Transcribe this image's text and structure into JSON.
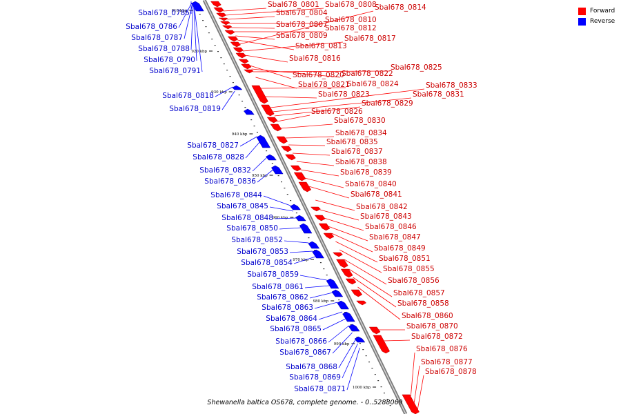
{
  "caption": "Shewanella baltica OS678, complete genome. - 0..5288069",
  "legend": [
    {
      "label": "Forward",
      "color": "#ff0000"
    },
    {
      "label": "Reverse",
      "color": "#0000ff"
    }
  ],
  "colors": {
    "forward": "#ff0000",
    "reverse": "#0000ff",
    "backbone": "#888888"
  },
  "ticks": [
    "910 kbp",
    "920 kbp",
    "930 kbp",
    "940 kbp",
    "950 kbp",
    "960 kbp",
    "970 kbp",
    "980 kbp",
    "990 kbp",
    "1000 kbp"
  ],
  "forward_genes": [
    "Sbal678_0801",
    "Sbal678_0804",
    "Sbal678_0807",
    "Sbal678_0809",
    "Sbal678_0808",
    "Sbal678_0810",
    "Sbal678_0812",
    "Sbal678_0814",
    "Sbal678_0813",
    "Sbal678_0817",
    "Sbal678_0816",
    "Sbal678_0820",
    "Sbal678_0822",
    "Sbal678_0825",
    "Sbal678_0821",
    "Sbal678_0824",
    "Sbal678_0823",
    "Sbal678_0833",
    "Sbal678_0831",
    "Sbal678_0829",
    "Sbal678_0826",
    "Sbal678_0830",
    "Sbal678_0834",
    "Sbal678_0835",
    "Sbal678_0837",
    "Sbal678_0838",
    "Sbal678_0839",
    "Sbal678_0840",
    "Sbal678_0841",
    "Sbal678_0842",
    "Sbal678_0843",
    "Sbal678_0846",
    "Sbal678_0847",
    "Sbal678_0849",
    "Sbal678_0851",
    "Sbal678_0855",
    "Sbal678_0856",
    "Sbal678_0857",
    "Sbal678_0858",
    "Sbal678_0860",
    "Sbal678_0870",
    "Sbal678_0872",
    "Sbal678_0876",
    "Sbal678_0877",
    "Sbal678_0878"
  ],
  "reverse_genes": [
    "Sbal678_0785",
    "Sbal678_0786",
    "Sbal678_0787",
    "Sbal678_0788",
    "Sbal678_0790",
    "Sbal678_0791",
    "Sbal678_0818",
    "Sbal678_0819",
    "Sbal678_0827",
    "Sbal678_0828",
    "Sbal678_0832",
    "Sbal678_0836",
    "Sbal678_0844",
    "Sbal678_0845",
    "Sbal678_0848",
    "Sbal678_0850",
    "Sbal678_0852",
    "Sbal678_0853",
    "Sbal678_0854",
    "Sbal678_0859",
    "Sbal678_0861",
    "Sbal678_0862",
    "Sbal678_0863",
    "Sbal678_0864",
    "Sbal678_0865",
    "Sbal678_0866",
    "Sbal678_0867",
    "Sbal678_0868",
    "Sbal678_0869",
    "Sbal678_0871"
  ]
}
